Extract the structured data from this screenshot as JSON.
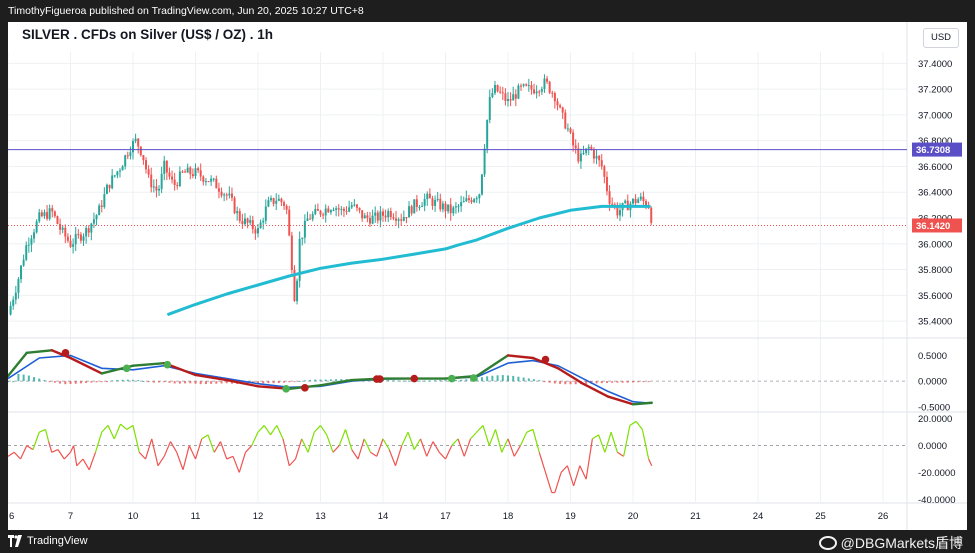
{
  "header": {
    "published_line": "TimothyFigueroa published on TradingView.com, Jun 20, 2025 10:27 UTC+8"
  },
  "chart_title": "SILVER . CFDs on Silver (US$ / OZ) . 1h",
  "currency_button": "USD",
  "footer": {
    "logo_text": "TradingView",
    "watermark": "@DBGMarkets盾博"
  },
  "colors": {
    "up_candle": "#26a69a",
    "down_candle": "#ef5350",
    "ma_line": "#22bcd2",
    "horizontal_line": "#5b4fc7",
    "current_price_line": "#ef5350",
    "macd_fast": "#2e7d32",
    "macd_slow": "#1e5fd6",
    "macd_dark": "#b71c1c",
    "osc_up": "#7ee000",
    "osc_down": "#ef5350"
  },
  "chart_data": [
    {
      "type": "candlestick",
      "title": "SILVER . CFDs on Silver (US$ / OZ) . 1h",
      "x_tick_labels": [
        "6",
        "7",
        "10",
        "11",
        "12",
        "13",
        "14",
        "17",
        "18",
        "19",
        "20",
        "21",
        "24",
        "25",
        "26"
      ],
      "x_tick_positions": [
        0,
        1,
        2,
        3,
        4,
        5,
        6,
        7,
        8,
        9,
        10,
        11,
        12,
        13,
        14
      ],
      "y_tick_labels": [
        "37.4000",
        "37.2000",
        "37.0000",
        "36.8000",
        "36.6000",
        "36.4000",
        "36.2000",
        "36.0000",
        "35.8000",
        "35.6000",
        "35.4000"
      ],
      "ylim": [
        35.3,
        37.55
      ],
      "horizontal_line": {
        "value": 36.7308,
        "label": "36.7308"
      },
      "current_price": {
        "value": 36.142,
        "label": "36.1420"
      },
      "price_path": [
        [
          0.0,
          35.45
        ],
        [
          0.15,
          35.7
        ],
        [
          0.3,
          36.0
        ],
        [
          0.5,
          36.2
        ],
        [
          0.7,
          36.25
        ],
        [
          0.85,
          36.1
        ],
        [
          1.0,
          36.0
        ],
        [
          1.25,
          36.1
        ],
        [
          1.45,
          36.25
        ],
        [
          1.6,
          36.45
        ],
        [
          1.8,
          36.6
        ],
        [
          1.95,
          36.75
        ],
        [
          2.05,
          36.8
        ],
        [
          2.15,
          36.7
        ],
        [
          2.25,
          36.5
        ],
        [
          2.4,
          36.4
        ],
        [
          2.5,
          36.6
        ],
        [
          2.65,
          36.45
        ],
        [
          2.8,
          36.55
        ],
        [
          3.0,
          36.55
        ],
        [
          3.2,
          36.5
        ],
        [
          3.35,
          36.45
        ],
        [
          3.55,
          36.35
        ],
        [
          3.7,
          36.2
        ],
        [
          3.85,
          36.15
        ],
        [
          4.0,
          36.1
        ],
        [
          4.15,
          36.3
        ],
        [
          4.3,
          36.35
        ],
        [
          4.45,
          36.3
        ],
        [
          4.55,
          35.8
        ],
        [
          4.6,
          35.5
        ],
        [
          4.65,
          36.0
        ],
        [
          4.8,
          36.2
        ],
        [
          5.0,
          36.25
        ],
        [
          5.2,
          36.3
        ],
        [
          5.35,
          36.25
        ],
        [
          5.5,
          36.3
        ],
        [
          5.7,
          36.2
        ],
        [
          5.9,
          36.2
        ],
        [
          6.1,
          36.25
        ],
        [
          6.3,
          36.2
        ],
        [
          6.5,
          36.3
        ],
        [
          6.7,
          36.35
        ],
        [
          6.9,
          36.3
        ],
        [
          7.1,
          36.25
        ],
        [
          7.25,
          36.3
        ],
        [
          7.4,
          36.35
        ],
        [
          7.55,
          36.4
        ],
        [
          7.65,
          36.9
        ],
        [
          7.72,
          37.15
        ],
        [
          7.8,
          37.2
        ],
        [
          8.0,
          37.1
        ],
        [
          8.2,
          37.2
        ],
        [
          8.4,
          37.2
        ],
        [
          8.6,
          37.25
        ],
        [
          8.75,
          37.15
        ],
        [
          8.85,
          37.0
        ],
        [
          8.95,
          36.9
        ],
        [
          9.05,
          36.75
        ],
        [
          9.15,
          36.65
        ],
        [
          9.3,
          36.75
        ],
        [
          9.5,
          36.6
        ],
        [
          9.62,
          36.35
        ],
        [
          9.75,
          36.25
        ],
        [
          9.9,
          36.3
        ],
        [
          10.1,
          36.35
        ],
        [
          10.25,
          36.3
        ],
        [
          10.32,
          36.14
        ]
      ],
      "ma_line": [
        [
          2.55,
          35.45
        ],
        [
          3.0,
          35.53
        ],
        [
          3.5,
          35.61
        ],
        [
          4.0,
          35.68
        ],
        [
          4.5,
          35.75
        ],
        [
          5.0,
          35.81
        ],
        [
          5.5,
          35.85
        ],
        [
          6.0,
          35.88
        ],
        [
          6.5,
          35.92
        ],
        [
          7.0,
          35.96
        ],
        [
          7.2,
          35.99
        ],
        [
          7.5,
          36.03
        ],
        [
          8.0,
          36.12
        ],
        [
          8.5,
          36.2
        ],
        [
          9.0,
          36.26
        ],
        [
          9.5,
          36.29
        ],
        [
          10.0,
          36.29
        ],
        [
          10.28,
          36.29
        ]
      ]
    },
    {
      "type": "line",
      "name": "MACD",
      "y_tick_labels": [
        "0.5000",
        "0.0000",
        "-0.5000"
      ],
      "ylim": [
        -0.6,
        0.8
      ],
      "series": [
        {
          "values": [
            [
              0.0,
              0.1
            ],
            [
              0.3,
              0.55
            ],
            [
              0.7,
              0.6
            ],
            [
              1.0,
              0.45
            ],
            [
              1.5,
              0.15
            ],
            [
              2.0,
              0.3
            ],
            [
              2.5,
              0.35
            ],
            [
              3.0,
              0.12
            ],
            [
              3.5,
              0.02
            ],
            [
              4.0,
              -0.1
            ],
            [
              4.5,
              -0.15
            ],
            [
              5.0,
              -0.08
            ],
            [
              5.5,
              0.02
            ],
            [
              6.0,
              0.05
            ],
            [
              6.5,
              0.05
            ],
            [
              7.0,
              0.05
            ],
            [
              7.5,
              0.1
            ],
            [
              8.0,
              0.5
            ],
            [
              8.4,
              0.45
            ],
            [
              8.8,
              0.25
            ],
            [
              9.2,
              -0.05
            ],
            [
              9.6,
              -0.3
            ],
            [
              10.0,
              -0.45
            ],
            [
              10.3,
              -0.42
            ]
          ]
        },
        {
          "values": [
            [
              0.0,
              0.05
            ],
            [
              0.5,
              0.45
            ],
            [
              1.0,
              0.5
            ],
            [
              1.5,
              0.25
            ],
            [
              2.0,
              0.22
            ],
            [
              2.5,
              0.3
            ],
            [
              3.0,
              0.15
            ],
            [
              3.5,
              0.05
            ],
            [
              4.0,
              -0.05
            ],
            [
              4.5,
              -0.12
            ],
            [
              5.0,
              -0.1
            ],
            [
              5.5,
              0.0
            ],
            [
              6.0,
              0.04
            ],
            [
              6.5,
              0.05
            ],
            [
              7.0,
              0.05
            ],
            [
              7.5,
              0.08
            ],
            [
              8.0,
              0.35
            ],
            [
              8.4,
              0.4
            ],
            [
              8.8,
              0.3
            ],
            [
              9.2,
              0.05
            ],
            [
              9.6,
              -0.2
            ],
            [
              10.0,
              -0.4
            ],
            [
              10.3,
              -0.43
            ]
          ]
        }
      ],
      "markers": [
        {
          "x": 0.92,
          "y": 0.55
        },
        {
          "x": 1.9,
          "y": 0.25
        },
        {
          "x": 2.55,
          "y": 0.32
        },
        {
          "x": 4.45,
          "y": -0.15
        },
        {
          "x": 4.75,
          "y": -0.13
        },
        {
          "x": 5.9,
          "y": 0.04
        },
        {
          "x": 5.95,
          "y": 0.04
        },
        {
          "x": 6.5,
          "y": 0.05
        },
        {
          "x": 7.1,
          "y": 0.05
        },
        {
          "x": 7.45,
          "y": 0.06
        },
        {
          "x": 8.6,
          "y": 0.42
        }
      ],
      "histogram": [
        [
          0.1,
          0.15
        ],
        [
          0.3,
          0.12
        ],
        [
          0.5,
          0.05
        ],
        [
          0.7,
          -0.02
        ],
        [
          0.9,
          -0.06
        ],
        [
          1.1,
          -0.05
        ],
        [
          1.3,
          -0.03
        ],
        [
          1.5,
          -0.02
        ],
        [
          1.7,
          0.02
        ],
        [
          1.9,
          0.03
        ],
        [
          2.1,
          0.02
        ],
        [
          2.3,
          -0.03
        ],
        [
          2.5,
          -0.02
        ],
        [
          2.7,
          -0.05
        ],
        [
          2.9,
          -0.04
        ],
        [
          3.1,
          -0.06
        ],
        [
          3.3,
          -0.05
        ],
        [
          3.5,
          -0.04
        ],
        [
          3.7,
          -0.06
        ],
        [
          3.9,
          -0.05
        ],
        [
          4.1,
          -0.04
        ],
        [
          4.3,
          -0.04
        ],
        [
          4.5,
          -0.02
        ],
        [
          4.7,
          0.01
        ],
        [
          4.9,
          0.03
        ],
        [
          5.1,
          0.03
        ],
        [
          5.3,
          0.04
        ],
        [
          5.5,
          0.04
        ],
        [
          5.7,
          0.04
        ],
        [
          5.9,
          0.03
        ],
        [
          6.1,
          0.02
        ],
        [
          6.3,
          0.01
        ],
        [
          6.5,
          0.01
        ],
        [
          6.7,
          0.01
        ],
        [
          6.9,
          0.02
        ],
        [
          7.1,
          0.02
        ],
        [
          7.3,
          0.03
        ],
        [
          7.5,
          0.06
        ],
        [
          7.7,
          0.1
        ],
        [
          7.9,
          0.12
        ],
        [
          8.1,
          0.1
        ],
        [
          8.3,
          0.06
        ],
        [
          8.5,
          0.02
        ],
        [
          8.7,
          -0.04
        ],
        [
          8.9,
          -0.06
        ],
        [
          9.1,
          -0.06
        ],
        [
          9.3,
          -0.05
        ],
        [
          9.5,
          -0.04
        ],
        [
          9.7,
          -0.03
        ],
        [
          9.9,
          -0.03
        ],
        [
          10.1,
          -0.02
        ],
        [
          10.3,
          -0.01
        ]
      ]
    },
    {
      "type": "line",
      "name": "Oscillator",
      "y_tick_labels": [
        "20.0000",
        "0.0000",
        "-20.0000",
        "-40.0000"
      ],
      "ylim": [
        -42,
        25
      ],
      "values": [
        [
          0.0,
          -8
        ],
        [
          0.1,
          -5
        ],
        [
          0.2,
          -10
        ],
        [
          0.3,
          0
        ],
        [
          0.4,
          -3
        ],
        [
          0.5,
          10
        ],
        [
          0.6,
          12
        ],
        [
          0.65,
          3
        ],
        [
          0.7,
          -5
        ],
        [
          0.8,
          -3
        ],
        [
          0.9,
          -10
        ],
        [
          1.0,
          -5
        ],
        [
          1.05,
          0
        ],
        [
          1.1,
          -15
        ],
        [
          1.2,
          -10
        ],
        [
          1.3,
          -18
        ],
        [
          1.4,
          -5
        ],
        [
          1.5,
          10
        ],
        [
          1.6,
          15
        ],
        [
          1.7,
          5
        ],
        [
          1.8,
          16
        ],
        [
          1.9,
          12
        ],
        [
          2.0,
          15
        ],
        [
          2.1,
          -5
        ],
        [
          2.2,
          -10
        ],
        [
          2.3,
          5
        ],
        [
          2.4,
          -15
        ],
        [
          2.5,
          -8
        ],
        [
          2.6,
          3
        ],
        [
          2.7,
          -5
        ],
        [
          2.8,
          -18
        ],
        [
          2.9,
          0
        ],
        [
          3.0,
          -10
        ],
        [
          3.1,
          5
        ],
        [
          3.2,
          8
        ],
        [
          3.3,
          -5
        ],
        [
          3.4,
          3
        ],
        [
          3.5,
          -10
        ],
        [
          3.6,
          -8
        ],
        [
          3.7,
          -20
        ],
        [
          3.8,
          -5
        ],
        [
          3.9,
          0
        ],
        [
          4.0,
          10
        ],
        [
          4.1,
          15
        ],
        [
          4.2,
          8
        ],
        [
          4.3,
          15
        ],
        [
          4.4,
          5
        ],
        [
          4.5,
          -15
        ],
        [
          4.6,
          -10
        ],
        [
          4.7,
          5
        ],
        [
          4.8,
          -5
        ],
        [
          4.9,
          10
        ],
        [
          5.0,
          15
        ],
        [
          5.1,
          8
        ],
        [
          5.2,
          -5
        ],
        [
          5.3,
          0
        ],
        [
          5.4,
          12
        ],
        [
          5.5,
          -3
        ],
        [
          5.6,
          -10
        ],
        [
          5.7,
          5
        ],
        [
          5.8,
          -5
        ],
        [
          5.9,
          -8
        ],
        [
          6.0,
          5
        ],
        [
          6.1,
          -3
        ],
        [
          6.2,
          -15
        ],
        [
          6.3,
          0
        ],
        [
          6.4,
          10
        ],
        [
          6.5,
          -3
        ],
        [
          6.6,
          5
        ],
        [
          6.7,
          -8
        ],
        [
          6.8,
          3
        ],
        [
          6.9,
          -5
        ],
        [
          7.0,
          -10
        ],
        [
          7.1,
          0
        ],
        [
          7.2,
          5
        ],
        [
          7.3,
          -8
        ],
        [
          7.4,
          5
        ],
        [
          7.5,
          10
        ],
        [
          7.6,
          15
        ],
        [
          7.7,
          0
        ],
        [
          7.8,
          12
        ],
        [
          7.9,
          -5
        ],
        [
          8.0,
          5
        ],
        [
          8.1,
          -8
        ],
        [
          8.2,
          0
        ],
        [
          8.3,
          10
        ],
        [
          8.4,
          12
        ],
        [
          8.5,
          -5
        ],
        [
          8.6,
          -20
        ],
        [
          8.7,
          -35
        ],
        [
          8.75,
          -35
        ],
        [
          8.85,
          -20
        ],
        [
          8.95,
          -15
        ],
        [
          9.05,
          -30
        ],
        [
          9.15,
          -15
        ],
        [
          9.25,
          -25
        ],
        [
          9.35,
          5
        ],
        [
          9.45,
          8
        ],
        [
          9.55,
          -5
        ],
        [
          9.65,
          10
        ],
        [
          9.75,
          -5
        ],
        [
          9.85,
          -8
        ],
        [
          9.95,
          15
        ],
        [
          10.05,
          18
        ],
        [
          10.15,
          12
        ],
        [
          10.25,
          -10
        ],
        [
          10.3,
          -15
        ]
      ]
    }
  ]
}
